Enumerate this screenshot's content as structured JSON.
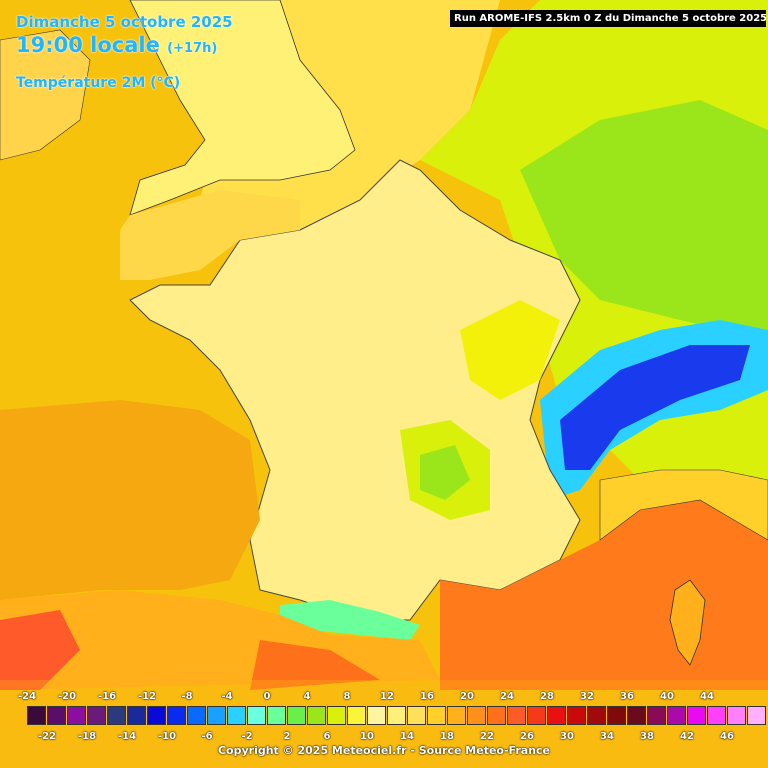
{
  "header": {
    "date": "Dimanche 5 octobre 2025",
    "time": "19:00 locale",
    "lead": "(+17h)",
    "variable": "Température 2M (°C)",
    "run": "Run AROME-IFS 2.5km 0 Z du Dimanche 5 octobre 2025"
  },
  "legend": {
    "top_labels": [
      "-24",
      "-20",
      "-16",
      "-12",
      "-8",
      "-4",
      "0",
      "4",
      "8",
      "12",
      "16",
      "20",
      "24",
      "28",
      "32",
      "36",
      "40",
      "44"
    ],
    "bottom_labels": [
      "-22",
      "-18",
      "-14",
      "-10",
      "-6",
      "-2",
      "2",
      "6",
      "10",
      "14",
      "18",
      "22",
      "26",
      "30",
      "34",
      "38",
      "42",
      "46"
    ],
    "colors": [
      "#3a0a3a",
      "#5a0e6a",
      "#8a0fa0",
      "#6a1a7a",
      "#2a3a7a",
      "#1a2a9a",
      "#0a0ad8",
      "#0a2af0",
      "#0a6aff",
      "#1aa0ff",
      "#2ad0ff",
      "#6affe0",
      "#6aff9a",
      "#6aee4a",
      "#9ae61a",
      "#d8f00a",
      "#faf53a",
      "#fff5a0",
      "#fff07a",
      "#ffe05a",
      "#ffd02a",
      "#ffb01a",
      "#ff901a",
      "#ff701a",
      "#ff5a2a",
      "#f53a1a",
      "#e81010",
      "#c80a0a",
      "#a00a0a",
      "#800a0a",
      "#6a0a1a",
      "#8a0a5a",
      "#aa0aaa",
      "#e80af0",
      "#ff40ff",
      "#ff80ff",
      "#ffb0ff"
    ]
  },
  "credit": "Copyright © 2025 Meteociel.fr - Source Meteo-France",
  "colors": {
    "sea_bay": "#f7c20c",
    "sea_med": "#ff7a1a",
    "land_warm": "#ffee8a",
    "land_cool": "#f3f10a",
    "alps_cold": "#1a3aee",
    "header_text": "#1fb6ff"
  }
}
